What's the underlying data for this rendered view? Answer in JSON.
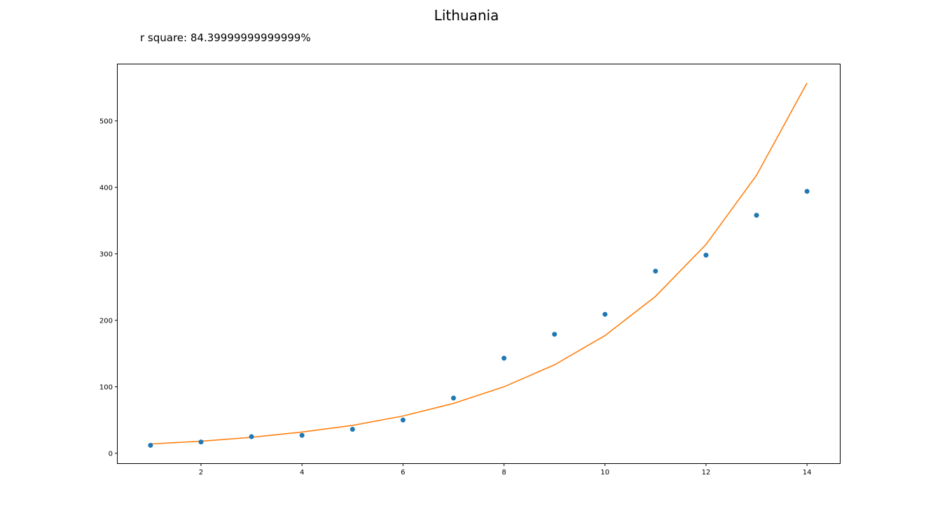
{
  "chart_data": {
    "type": "scatter",
    "title": "Lithuania",
    "annotation": "r square: 84.39999999999999%",
    "xlabel": "",
    "ylabel": "",
    "xlim": [
      0.35,
      14.65
    ],
    "ylim": [
      -15,
      585
    ],
    "xticks": [
      2,
      4,
      6,
      8,
      10,
      12,
      14
    ],
    "yticks": [
      0,
      100,
      200,
      300,
      400,
      500
    ],
    "grid": false,
    "series": [
      {
        "kind": "points",
        "color": "#1f77b4",
        "x": [
          1,
          2,
          3,
          4,
          5,
          6,
          7,
          8,
          9,
          10,
          11,
          12,
          13,
          14
        ],
        "y": [
          12,
          17,
          25,
          27,
          36,
          50,
          83,
          143,
          179,
          209,
          274,
          298,
          358,
          394
        ]
      },
      {
        "kind": "line",
        "color": "#ff7f0e",
        "x": [
          1,
          2,
          3,
          4,
          5,
          6,
          7,
          8,
          9,
          10,
          11,
          12,
          13,
          14
        ],
        "y": [
          14,
          18,
          24,
          32,
          42,
          56,
          75,
          100,
          133,
          177,
          236,
          314,
          418,
          557
        ]
      }
    ]
  }
}
